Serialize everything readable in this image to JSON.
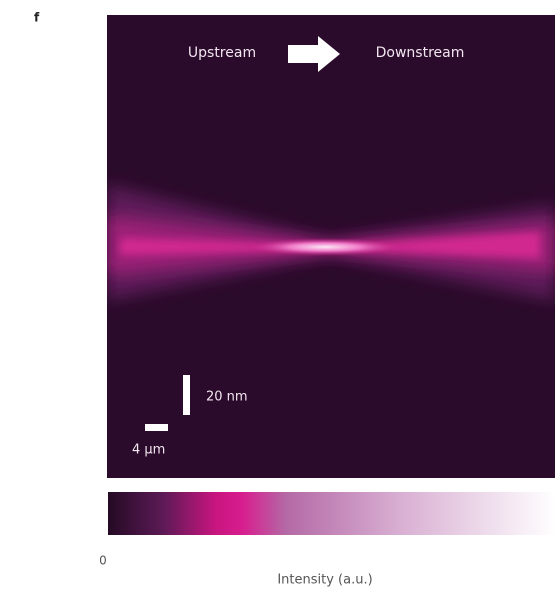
{
  "panel": {
    "label": "f",
    "flow": {
      "from": "Upstream",
      "to": "Downstream"
    },
    "scale_bars": {
      "vertical": "20 nm",
      "horizontal": "4 µm"
    },
    "colorbar": {
      "min_label": "0",
      "title": "Intensity (a.u.)"
    }
  }
}
